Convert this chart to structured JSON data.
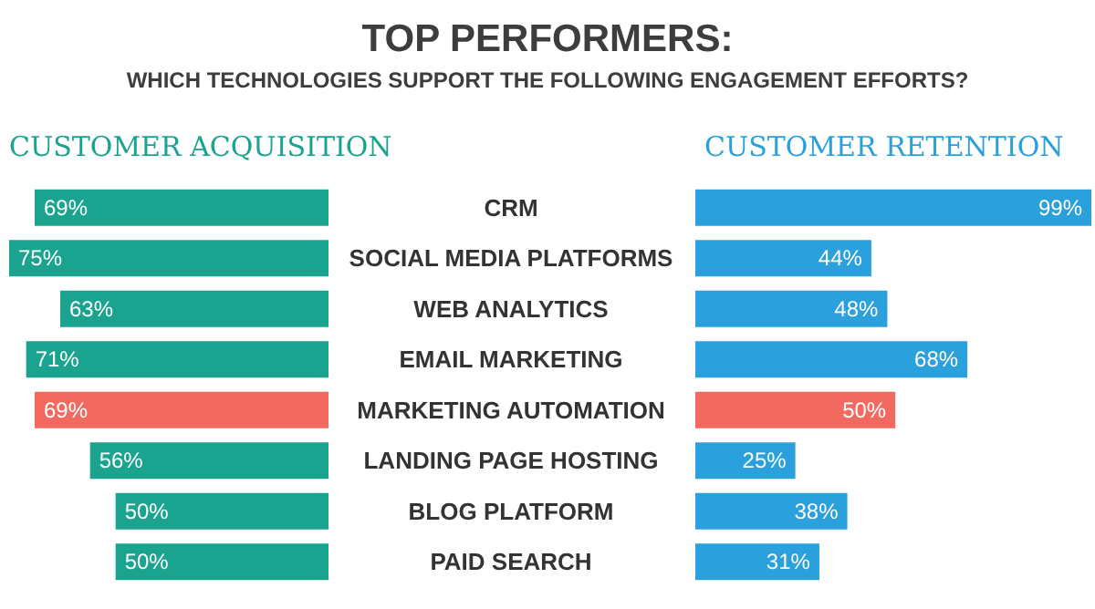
{
  "chart_data": [
    {
      "type": "bar",
      "orientation": "horizontal",
      "title": "TOP PERFORMERS:",
      "subtitle": "WHICH TECHNOLOGIES SUPPORT THE FOLLOWING ENGAGEMENT EFFORTS?",
      "xlabel": "CUSTOMER ACQUISITION",
      "categories": [
        "CRM",
        "SOCIAL MEDIA PLATFORMS",
        "WEB ANALYTICS",
        "EMAIL MARKETING",
        "MARKETING AUTOMATION",
        "LANDING PAGE HOSTING",
        "BLOG PLATFORM",
        "PAID SEARCH"
      ],
      "values": [
        69,
        75,
        63,
        71,
        69,
        56,
        50,
        50
      ],
      "value_labels": [
        "69%",
        "75%",
        "63%",
        "71%",
        "69%",
        "56%",
        "50%",
        "50%"
      ],
      "colors": [
        "#1aa38f",
        "#1aa38f",
        "#1aa38f",
        "#1aa38f",
        "#f26a5f",
        "#1aa38f",
        "#1aa38f",
        "#1aa38f"
      ]
    },
    {
      "type": "bar",
      "orientation": "horizontal",
      "xlabel": "CUSTOMER RETENTION",
      "values": [
        99,
        44,
        48,
        68,
        50,
        25,
        38,
        31
      ],
      "value_labels": [
        "99%",
        "44%",
        "48%",
        "68%",
        "50%",
        "25%",
        "38%",
        "31%"
      ],
      "colors": [
        "#2aa0dc",
        "#2aa0dc",
        "#2aa0dc",
        "#2aa0dc",
        "#f26a5f",
        "#2aa0dc",
        "#2aa0dc",
        "#2aa0dc"
      ]
    }
  ]
}
